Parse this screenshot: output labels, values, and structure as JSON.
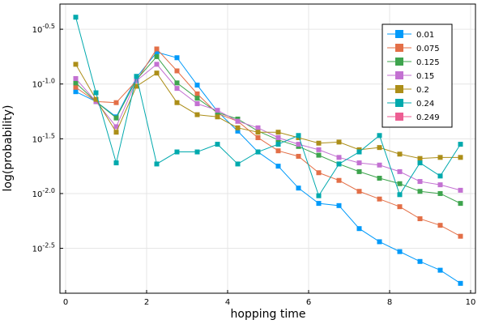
{
  "chart_data": {
    "type": "line",
    "x_label": "hopping time",
    "y_label": "log(probability)",
    "x": [
      0.25,
      0.75,
      1.25,
      1.75,
      2.25,
      2.75,
      3.25,
      3.75,
      4.25,
      4.75,
      5.25,
      5.75,
      6.25,
      6.75,
      7.25,
      7.75,
      8.25,
      8.75,
      9.25,
      9.75
    ],
    "xlim": [
      -0.14,
      10.12
    ],
    "xticks": [
      0,
      2,
      4,
      6,
      8,
      10
    ],
    "ylim": [
      -2.91,
      -0.27
    ],
    "yticks": [
      {
        "value": -0.5,
        "label": "10",
        "exponent": "-0.5"
      },
      {
        "value": -1.0,
        "label": "10",
        "exponent": "-1.0"
      },
      {
        "value": -1.5,
        "label": "10",
        "exponent": "-1.5"
      },
      {
        "value": -2.0,
        "label": "10",
        "exponent": "-2.0"
      },
      {
        "value": -2.5,
        "label": "10",
        "exponent": "-2.5"
      }
    ],
    "grid": true,
    "legend": "top-right",
    "series": [
      {
        "name": "0.01",
        "color": "#009AFA",
        "values": [
          -1.07,
          -1.16,
          -1.3,
          -0.94,
          -0.71,
          -0.76,
          -1.01,
          -1.25,
          -1.43,
          -1.62,
          -1.75,
          -1.95,
          -2.09,
          -2.11,
          -2.32,
          -2.44,
          -2.53,
          -2.62,
          -2.7,
          -2.82
        ]
      },
      {
        "name": "0.075",
        "color": "#E36F47",
        "values": [
          -1.03,
          -1.16,
          -1.17,
          -0.97,
          -0.68,
          -0.88,
          -1.09,
          -1.27,
          -1.34,
          -1.49,
          -1.61,
          -1.66,
          -1.81,
          -1.88,
          -1.98,
          -2.05,
          -2.12,
          -2.23,
          -2.29,
          -2.39
        ]
      },
      {
        "name": "0.125",
        "color": "#3EA44E",
        "values": [
          -0.99,
          -1.16,
          -1.31,
          -0.96,
          -0.75,
          -0.99,
          -1.13,
          -1.26,
          -1.32,
          -1.43,
          -1.51,
          -1.57,
          -1.65,
          -1.73,
          -1.8,
          -1.86,
          -1.91,
          -1.98,
          -2.0,
          -2.09
        ]
      },
      {
        "name": "0.15",
        "color": "#C371D2",
        "values": [
          -0.95,
          -1.16,
          -1.39,
          -0.97,
          -0.82,
          -1.04,
          -1.18,
          -1.24,
          -1.34,
          -1.4,
          -1.49,
          -1.55,
          -1.6,
          -1.67,
          -1.72,
          -1.74,
          -1.8,
          -1.89,
          -1.92,
          -1.97
        ]
      },
      {
        "name": "0.2",
        "color": "#AC8E18",
        "values": [
          -0.82,
          -1.14,
          -1.44,
          -1.02,
          -0.9,
          -1.17,
          -1.28,
          -1.3,
          -1.4,
          -1.44,
          -1.44,
          -1.49,
          -1.54,
          -1.53,
          -1.6,
          -1.58,
          -1.64,
          -1.68,
          -1.67,
          -1.67
        ]
      },
      {
        "name": "0.24",
        "color": "#00A9AD",
        "values": [
          -0.39,
          -1.08,
          -1.72,
          -0.93,
          -1.73,
          -1.62,
          -1.62,
          -1.55,
          -1.73,
          -1.62,
          -1.55,
          -1.47,
          -2.02,
          -1.73,
          -1.62,
          -1.47,
          -2.01,
          -1.72,
          -1.84,
          -1.55
        ]
      },
      {
        "name": "0.249",
        "color": "#ED5E93",
        "values": [
          null,
          null,
          null,
          null,
          null,
          null,
          null,
          null,
          null,
          null,
          null,
          null,
          null,
          null,
          null,
          null,
          null,
          null,
          null,
          null
        ]
      }
    ]
  }
}
